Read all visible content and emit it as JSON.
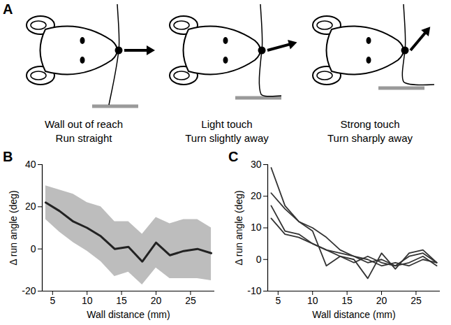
{
  "diagram": {
    "panel": "A",
    "cells": [
      {
        "lines": [
          "Wall out of reach",
          "Run straight"
        ]
      },
      {
        "lines": [
          "Light touch",
          "Turn slightly away"
        ]
      },
      {
        "lines": [
          "Strong touch",
          "Turn sharply away"
        ]
      }
    ]
  },
  "chart_data": [
    {
      "panel": "B",
      "type": "line",
      "x_label": "Wall distance (mm)",
      "y_label": "Δ run angle (deg)",
      "x": [
        4,
        6,
        8,
        10,
        12,
        14,
        16,
        18,
        20,
        22,
        24,
        26,
        28
      ],
      "xlim": [
        3.5,
        28.5
      ],
      "xticks": [
        5,
        10,
        15,
        20,
        25
      ],
      "ylim": [
        -20,
        40
      ],
      "yticks": [
        -20,
        0,
        20,
        40
      ],
      "series": [
        {
          "color": "#222222",
          "values": [
            22,
            18,
            13,
            10,
            6,
            0,
            1,
            -6,
            3,
            -3,
            -1,
            0,
            -2
          ],
          "lower": [
            14,
            8,
            3,
            -1,
            -6,
            -13,
            -11,
            -17,
            -9,
            -14,
            -14,
            -14,
            -15
          ],
          "upper": [
            30,
            28,
            26,
            22,
            20,
            13,
            13,
            7,
            15,
            12,
            14,
            14,
            10
          ]
        }
      ]
    },
    {
      "panel": "C",
      "type": "line",
      "x_label": "Wall distance (mm)",
      "y_label": "Δ run angle (deg)",
      "x": [
        4,
        6,
        8,
        10,
        12,
        14,
        16,
        18,
        20,
        22,
        24,
        26,
        28
      ],
      "xlim": [
        3.5,
        28.5
      ],
      "xticks": [
        5,
        10,
        15,
        20,
        25
      ],
      "ylim": [
        -10,
        30
      ],
      "yticks": [
        -10,
        0,
        10,
        20,
        30
      ],
      "series": [
        {
          "color": "#333333",
          "values": [
            29,
            17,
            12,
            10,
            7,
            3,
            1,
            -1,
            0,
            -2,
            1,
            2,
            -1
          ]
        },
        {
          "color": "#333333",
          "values": [
            21,
            16,
            12,
            9,
            -2,
            1,
            0,
            -6,
            2,
            -3,
            2,
            3,
            -1
          ]
        },
        {
          "color": "#333333",
          "values": [
            17,
            9,
            8,
            5,
            3,
            2,
            1,
            0,
            -2,
            -1,
            -2,
            0,
            -1
          ]
        },
        {
          "color": "#333333",
          "values": [
            13,
            8,
            7,
            5,
            3,
            1,
            -1,
            1,
            -1,
            -2,
            -1,
            1,
            -2
          ]
        }
      ]
    }
  ]
}
